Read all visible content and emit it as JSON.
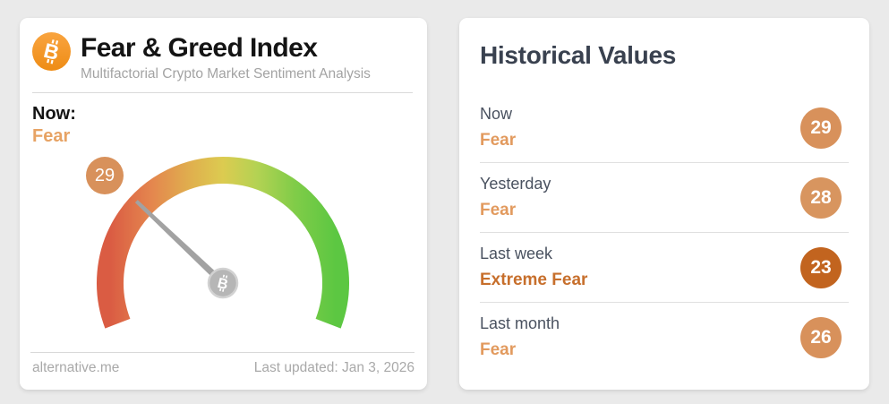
{
  "page": {
    "background": "#eaeaea"
  },
  "left_card": {
    "icons": {
      "logo": "bitcoin-icon",
      "needle_hub": "bitcoin-icon"
    },
    "brand_color": "#f7941e",
    "title": "Fear & Greed Index",
    "subtitle": "Multifactorial Crypto Market Sentiment Analysis",
    "now_label": "Now:",
    "now_value": "Fear",
    "now_value_color": "#e7a364",
    "gauge_badge": {
      "value": "29",
      "color": "#d8915b"
    },
    "footer": {
      "source": "alternative.me",
      "last_updated": "Last updated: Jan 3, 2026"
    }
  },
  "right_card": {
    "title": "Historical Values",
    "rows": [
      {
        "label": "Now",
        "sentiment": "Fear",
        "value": "29",
        "sentiment_color": "#e29a5e",
        "badge_color": "#d8915b"
      },
      {
        "label": "Yesterday",
        "sentiment": "Fear",
        "value": "28",
        "sentiment_color": "#e29a5e",
        "badge_color": "#d8955f"
      },
      {
        "label": "Last week",
        "sentiment": "Extreme Fear",
        "value": "23",
        "sentiment_color": "#c76f2c",
        "badge_color": "#c2641f"
      },
      {
        "label": "Last month",
        "sentiment": "Fear",
        "value": "26",
        "sentiment_color": "#e29a5e",
        "badge_color": "#d8915b"
      }
    ]
  },
  "chart_data": {
    "type": "gauge",
    "title": "Fear & Greed Index",
    "value": 29,
    "min": 0,
    "max": 100,
    "classification": "Fear",
    "sweep_degrees": 222,
    "needle_color": "#a2a2a2",
    "hub_color": "#b6b6b6",
    "color_stops": [
      {
        "offset": "0%",
        "color": "#da5c43"
      },
      {
        "offset": "18%",
        "color": "#e4854e"
      },
      {
        "offset": "35%",
        "color": "#e0ae4e"
      },
      {
        "offset": "50%",
        "color": "#dccb50"
      },
      {
        "offset": "65%",
        "color": "#b4d253"
      },
      {
        "offset": "82%",
        "color": "#80cc48"
      },
      {
        "offset": "100%",
        "color": "#5cc742"
      }
    ],
    "historical": [
      {
        "period": "Now",
        "classification": "Fear",
        "value": 29
      },
      {
        "period": "Yesterday",
        "classification": "Fear",
        "value": 28
      },
      {
        "period": "Last week",
        "classification": "Extreme Fear",
        "value": 23
      },
      {
        "period": "Last month",
        "classification": "Fear",
        "value": 26
      }
    ]
  }
}
